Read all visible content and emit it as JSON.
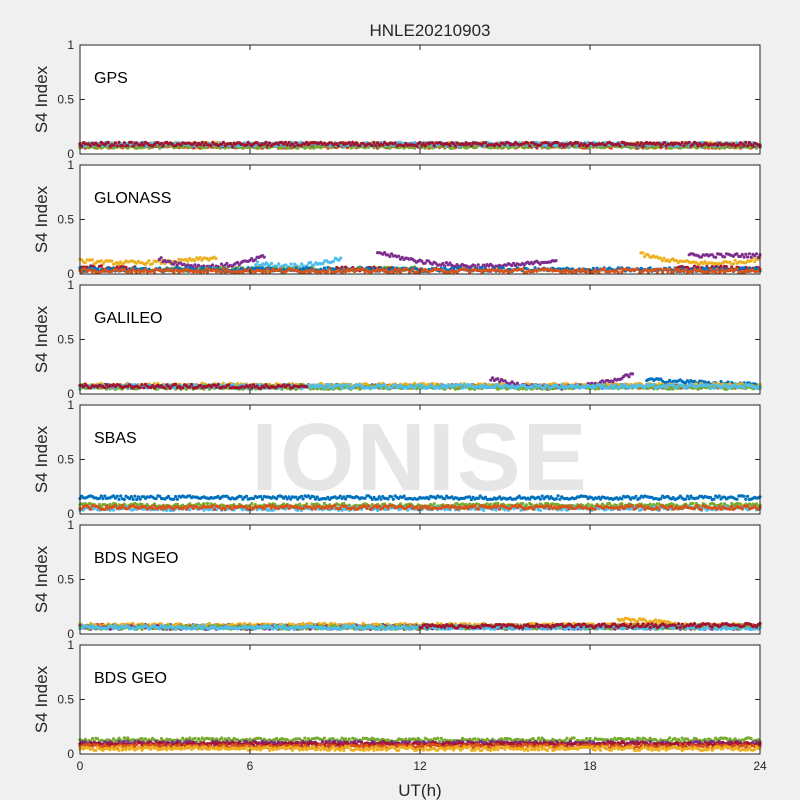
{
  "figure": {
    "title": "HNLE20210903",
    "xlabel": "UT(h)",
    "watermark": "IONISE",
    "background": "#f0f0f0",
    "axes_background": "#ffffff"
  },
  "chart_data": [
    {
      "type": "scatter",
      "panel_label": "GPS",
      "ylabel": "S4 Index",
      "xlim": [
        0,
        24
      ],
      "ylim": [
        0,
        1
      ],
      "xticks": [
        0,
        6,
        12,
        18,
        24
      ],
      "yticks": [
        0,
        0.5,
        1
      ],
      "ytick_labels": [
        "0",
        "0.5",
        "1"
      ],
      "series": [
        {
          "color": "#0072bd",
          "segments": [
            [
              0,
              24,
              0.08,
              0.08,
              0
            ]
          ]
        },
        {
          "color": "#d95319",
          "segments": [
            [
              0,
              24,
              0.07,
              0.07,
              0
            ]
          ]
        },
        {
          "color": "#edb120",
          "segments": [
            [
              0,
              24,
              0.09,
              0.09,
              0
            ]
          ]
        },
        {
          "color": "#7e2f8e",
          "segments": [
            [
              0,
              24,
              0.08,
              0.08,
              0
            ]
          ]
        },
        {
          "color": "#77ac30",
          "segments": [
            [
              0,
              24,
              0.07,
              0.07,
              0
            ]
          ]
        },
        {
          "color": "#4dbeee",
          "segments": [
            [
              0,
              24,
              0.09,
              0.09,
              0
            ]
          ]
        },
        {
          "color": "#a2142f",
          "segments": [
            [
              0,
              24,
              0.09,
              0.09,
              0
            ]
          ]
        }
      ]
    },
    {
      "type": "scatter",
      "panel_label": "GLONASS",
      "ylabel": "S4 Index",
      "xlim": [
        0,
        24
      ],
      "ylim": [
        0,
        1
      ],
      "xticks": [
        0,
        6,
        12,
        18,
        24
      ],
      "yticks": [
        0,
        0.5,
        1
      ],
      "ytick_labels": [
        "0",
        "0.5",
        "1"
      ],
      "series": [
        {
          "color": "#edb120",
          "segments": [
            [
              0,
              4.8,
              0.12,
              0.15,
              -0.03
            ],
            [
              19.8,
              24,
              0.18,
              0.14,
              -0.06
            ]
          ]
        },
        {
          "color": "#7e2f8e",
          "segments": [
            [
              2.8,
              6.5,
              0.14,
              0.16,
              -0.08
            ],
            [
              10.5,
              16.8,
              0.2,
              0.13,
              -0.09
            ],
            [
              21.5,
              24,
              0.17,
              0.17,
              0
            ]
          ]
        },
        {
          "color": "#4dbeee",
          "segments": [
            [
              6.2,
              9.2,
              0.1,
              0.14,
              -0.04
            ]
          ]
        },
        {
          "color": "#77ac30",
          "segments": [
            [
              3,
              12,
              0.04,
              0.05,
              0
            ]
          ]
        },
        {
          "color": "#a2142f",
          "segments": [
            [
              0,
              2,
              0.06,
              0.05,
              0
            ],
            [
              9,
              11,
              0.05,
              0.04,
              0
            ],
            [
              21,
              24,
              0.06,
              0.05,
              0
            ]
          ]
        },
        {
          "color": "#0072bd",
          "segments": [
            [
              0,
              24,
              0.04,
              0.04,
              0
            ]
          ]
        },
        {
          "color": "#d95319",
          "segments": [
            [
              0,
              24,
              0.03,
              0.03,
              0
            ]
          ]
        }
      ]
    },
    {
      "type": "scatter",
      "panel_label": "GALILEO",
      "ylabel": "S4 Index",
      "xlim": [
        0,
        24
      ],
      "ylim": [
        0,
        1
      ],
      "xticks": [
        0,
        6,
        12,
        18,
        24
      ],
      "yticks": [
        0,
        0.5,
        1
      ],
      "ytick_labels": [
        "0",
        "0.5",
        "1"
      ],
      "series": [
        {
          "color": "#0072bd",
          "segments": [
            [
              0,
              24,
              0.07,
              0.07,
              0
            ],
            [
              20,
              24,
              0.13,
              0.08,
              0
            ]
          ]
        },
        {
          "color": "#d95319",
          "segments": [
            [
              0,
              24,
              0.07,
              0.07,
              0
            ]
          ]
        },
        {
          "color": "#edb120",
          "segments": [
            [
              0,
              24,
              0.08,
              0.08,
              0
            ]
          ]
        },
        {
          "color": "#7e2f8e",
          "segments": [
            [
              14.5,
              19.5,
              0.14,
              0.18,
              -0.1
            ]
          ]
        },
        {
          "color": "#77ac30",
          "segments": [
            [
              0,
              24,
              0.06,
              0.06,
              0
            ]
          ]
        },
        {
          "color": "#4dbeee",
          "segments": [
            [
              0,
              24,
              0.07,
              0.07,
              0
            ]
          ]
        },
        {
          "color": "#a2142f",
          "segments": [
            [
              0,
              8,
              0.07,
              0.07,
              0
            ]
          ]
        }
      ]
    },
    {
      "type": "scatter",
      "panel_label": "SBAS",
      "ylabel": "S4 Index",
      "xlim": [
        0,
        24
      ],
      "ylim": [
        0,
        1
      ],
      "xticks": [
        0,
        6,
        12,
        18,
        24
      ],
      "yticks": [
        0,
        0.5,
        1
      ],
      "ytick_labels": [
        "0",
        "0.5",
        "1"
      ],
      "series": [
        {
          "color": "#0072bd",
          "segments": [
            [
              0,
              24,
              0.15,
              0.15,
              0
            ]
          ]
        },
        {
          "color": "#77ac30",
          "segments": [
            [
              0,
              24,
              0.08,
              0.08,
              0
            ]
          ]
        },
        {
          "color": "#4dbeee",
          "segments": [
            [
              0,
              24,
              0.05,
              0.05,
              0
            ]
          ]
        },
        {
          "color": "#d95319",
          "segments": [
            [
              0,
              24,
              0.06,
              0.06,
              0
            ]
          ]
        }
      ]
    },
    {
      "type": "scatter",
      "panel_label": "BDS NGEO",
      "ylabel": "S4 Index",
      "xlim": [
        0,
        24
      ],
      "ylim": [
        0,
        1
      ],
      "xticks": [
        0,
        6,
        12,
        18,
        24
      ],
      "yticks": [
        0,
        0.5,
        1
      ],
      "ytick_labels": [
        "0",
        "0.5",
        "1"
      ],
      "series": [
        {
          "color": "#0072bd",
          "segments": [
            [
              0,
              24,
              0.07,
              0.07,
              0
            ]
          ]
        },
        {
          "color": "#d95319",
          "segments": [
            [
              0,
              24,
              0.07,
              0.07,
              0
            ]
          ]
        },
        {
          "color": "#edb120",
          "segments": [
            [
              0,
              24,
              0.08,
              0.08,
              0
            ],
            [
              19,
              21,
              0.14,
              0.1,
              0
            ]
          ]
        },
        {
          "color": "#7e2f8e",
          "segments": [
            [
              0,
              24,
              0.06,
              0.06,
              0
            ]
          ]
        },
        {
          "color": "#77ac30",
          "segments": [
            [
              0,
              24,
              0.06,
              0.06,
              0
            ]
          ]
        },
        {
          "color": "#4dbeee",
          "segments": [
            [
              0,
              24,
              0.06,
              0.06,
              0
            ]
          ]
        },
        {
          "color": "#a2142f",
          "segments": [
            [
              12,
              24,
              0.07,
              0.08,
              0
            ]
          ]
        }
      ]
    },
    {
      "type": "scatter",
      "panel_label": "BDS GEO",
      "ylabel": "S4 Index",
      "xlim": [
        0,
        24
      ],
      "ylim": [
        0,
        1
      ],
      "xticks": [
        0,
        6,
        12,
        18,
        24
      ],
      "yticks": [
        0,
        0.5,
        1
      ],
      "ytick_labels": [
        "0",
        "0.5",
        "1"
      ],
      "series": [
        {
          "color": "#77ac30",
          "segments": [
            [
              0,
              24,
              0.13,
              0.13,
              0
            ]
          ]
        },
        {
          "color": "#7e2f8e",
          "segments": [
            [
              0,
              24,
              0.1,
              0.1,
              0
            ]
          ]
        },
        {
          "color": "#a2142f",
          "segments": [
            [
              0,
              24,
              0.09,
              0.09,
              0
            ]
          ]
        },
        {
          "color": "#d95319",
          "segments": [
            [
              0,
              24,
              0.07,
              0.07,
              0
            ]
          ]
        },
        {
          "color": "#edb120",
          "segments": [
            [
              0,
              24,
              0.05,
              0.05,
              0
            ]
          ]
        }
      ]
    }
  ]
}
